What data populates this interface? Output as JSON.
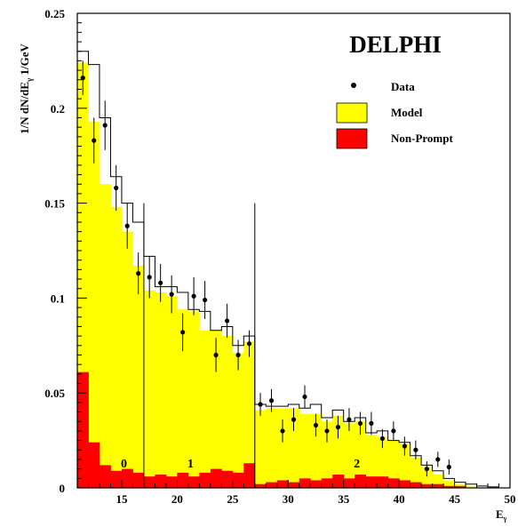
{
  "chart_data": {
    "type": "bar",
    "experiment_label": "DELPHI",
    "xlabel": "E",
    "xlabel_sub": "γ",
    "ylabel": "1/N dN/dE",
    "ylabel_sub": "γ",
    "ylabel_unit": " 1/GeV",
    "xlim": [
      11,
      50
    ],
    "ylim": [
      0,
      0.25
    ],
    "x_ticks": [
      "15",
      "20",
      "25",
      "30",
      "35",
      "40",
      "45",
      "50"
    ],
    "y_ticks": [
      "0",
      "0.05",
      "0.1",
      "0.15",
      "0.2",
      "0.25"
    ],
    "bin_edges": [
      11,
      12,
      13,
      14,
      15,
      16,
      17,
      18,
      19,
      20,
      21,
      22,
      23,
      24,
      25,
      26,
      27,
      28,
      29,
      30,
      31,
      32,
      33,
      34,
      35,
      36,
      37,
      38,
      39,
      40,
      41,
      42,
      43,
      44,
      45,
      46,
      47,
      48,
      49,
      50
    ],
    "series": [
      {
        "name": "Model",
        "style": "histogram-outline",
        "color": "#ffff00",
        "values": [
          0.23,
          0.223,
          0.195,
          0.164,
          0.15,
          0.14,
          0.122,
          0.106,
          0.106,
          0.103,
          0.094,
          0.093,
          0.083,
          0.085,
          0.075,
          0.08,
          0.044,
          0.043,
          0.043,
          0.044,
          0.042,
          0.044,
          0.037,
          0.041,
          0.035,
          0.037,
          0.029,
          0.03,
          0.025,
          0.024,
          0.017,
          0.012,
          0.009,
          0.005,
          0.003,
          0.002,
          0.001,
          0.0005,
          0
        ]
      },
      {
        "name": "Model",
        "style": "filled",
        "color": "#ffff00",
        "values": [
          0.224,
          0.193,
          0.16,
          0.148,
          0.135,
          0.117,
          0.104,
          0.103,
          0.101,
          0.094,
          0.093,
          0.083,
          0.083,
          0.08,
          0.071,
          0.077,
          0.041,
          0.042,
          0.042,
          0.042,
          0.039,
          0.039,
          0.035,
          0.038,
          0.034,
          0.035,
          0.028,
          0.027,
          0.025,
          0.023,
          0.016,
          0.011,
          0.007,
          0.004,
          0.002,
          0.001,
          0,
          0,
          0
        ]
      },
      {
        "name": "Non-Prompt",
        "style": "filled",
        "color": "#ff0000",
        "values": [
          0.061,
          0.024,
          0.012,
          0.009,
          0.01,
          0.008,
          0.006,
          0.007,
          0.006,
          0.008,
          0.006,
          0.008,
          0.01,
          0.009,
          0.008,
          0.013,
          0.002,
          0.003,
          0.004,
          0.003,
          0.005,
          0.004,
          0.005,
          0.007,
          0.005,
          0.007,
          0.006,
          0.006,
          0.005,
          0.004,
          0.003,
          0.002,
          0.002,
          0.001,
          0.001,
          0,
          0,
          0,
          0
        ]
      },
      {
        "name": "Data",
        "style": "points",
        "color": "#000000",
        "points": [
          {
            "x": 11.5,
            "y": 0.216,
            "err": 0.009
          },
          {
            "x": 12.5,
            "y": 0.183,
            "err": 0.012
          },
          {
            "x": 13.5,
            "y": 0.191,
            "err": 0.013
          },
          {
            "x": 14.5,
            "y": 0.158,
            "err": 0.012
          },
          {
            "x": 15.5,
            "y": 0.138,
            "err": 0.012
          },
          {
            "x": 16.5,
            "y": 0.113,
            "err": 0.011
          },
          {
            "x": 17.5,
            "y": 0.111,
            "err": 0.011
          },
          {
            "x": 18.5,
            "y": 0.108,
            "err": 0.01
          },
          {
            "x": 19.5,
            "y": 0.102,
            "err": 0.01
          },
          {
            "x": 20.5,
            "y": 0.082,
            "err": 0.01
          },
          {
            "x": 21.5,
            "y": 0.101,
            "err": 0.01
          },
          {
            "x": 22.5,
            "y": 0.099,
            "err": 0.01
          },
          {
            "x": 23.5,
            "y": 0.07,
            "err": 0.009
          },
          {
            "x": 24.5,
            "y": 0.088,
            "err": 0.009
          },
          {
            "x": 25.5,
            "y": 0.07,
            "err": 0.008
          },
          {
            "x": 26.5,
            "y": 0.076,
            "err": 0.007
          },
          {
            "x": 27.5,
            "y": 0.044,
            "err": 0.006
          },
          {
            "x": 28.5,
            "y": 0.046,
            "err": 0.006
          },
          {
            "x": 29.5,
            "y": 0.03,
            "err": 0.006
          },
          {
            "x": 30.5,
            "y": 0.036,
            "err": 0.006
          },
          {
            "x": 31.5,
            "y": 0.048,
            "err": 0.006
          },
          {
            "x": 32.5,
            "y": 0.033,
            "err": 0.006
          },
          {
            "x": 33.5,
            "y": 0.03,
            "err": 0.006
          },
          {
            "x": 34.5,
            "y": 0.032,
            "err": 0.006
          },
          {
            "x": 35.5,
            "y": 0.036,
            "err": 0.006
          },
          {
            "x": 36.5,
            "y": 0.034,
            "err": 0.006
          },
          {
            "x": 37.5,
            "y": 0.034,
            "err": 0.006
          },
          {
            "x": 38.5,
            "y": 0.026,
            "err": 0.005
          },
          {
            "x": 39.5,
            "y": 0.03,
            "err": 0.005
          },
          {
            "x": 40.5,
            "y": 0.022,
            "err": 0.005
          },
          {
            "x": 41.5,
            "y": 0.02,
            "err": 0.005
          },
          {
            "x": 42.5,
            "y": 0.01,
            "err": 0.004
          },
          {
            "x": 43.5,
            "y": 0.015,
            "err": 0.004
          },
          {
            "x": 44.5,
            "y": 0.011,
            "err": 0.004
          }
        ]
      }
    ],
    "region_boundaries": [
      {
        "x": 17,
        "top": 0.15
      },
      {
        "x": 27,
        "top": 0.15
      }
    ],
    "region_labels": [
      {
        "text": "0",
        "x": 15.2,
        "y": 0.013
      },
      {
        "text": "1",
        "x": 21.2,
        "y": 0.013
      },
      {
        "text": "2",
        "x": 36.2,
        "y": 0.013
      }
    ],
    "legend": {
      "position": "top-right",
      "entries": [
        {
          "label": "Data",
          "kind": "point",
          "color": "#000000"
        },
        {
          "label": "Model",
          "kind": "box",
          "color": "#ffff00"
        },
        {
          "label": "Non-Prompt",
          "kind": "box",
          "color": "#ff0000"
        }
      ]
    }
  }
}
